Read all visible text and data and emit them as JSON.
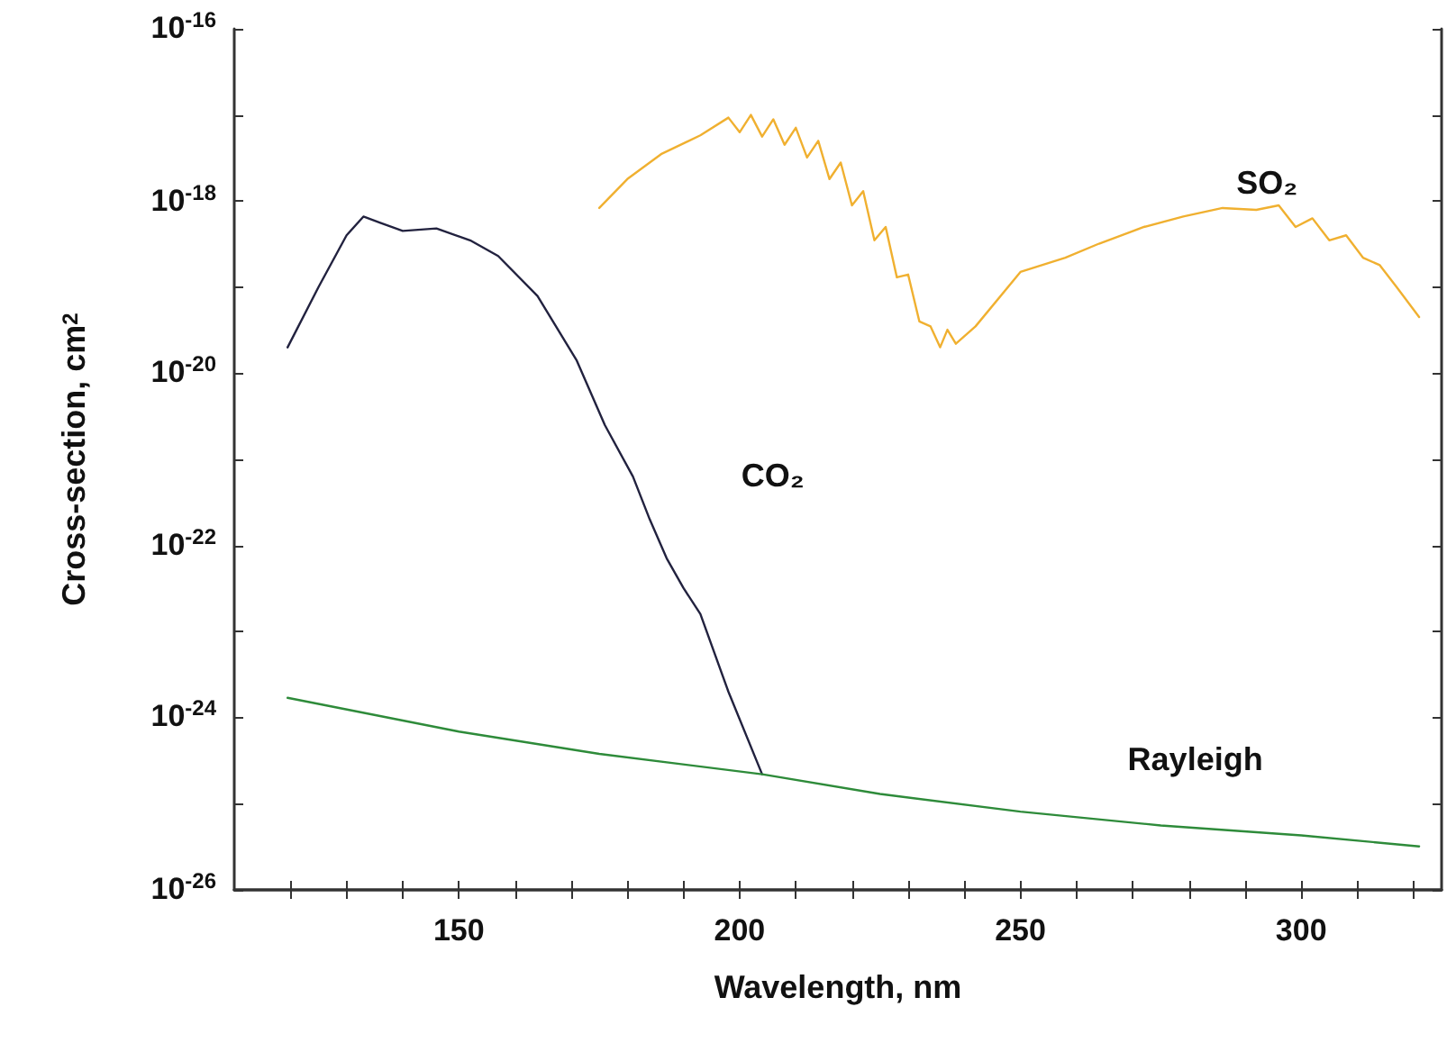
{
  "chart_data": {
    "type": "line",
    "xlabel": "Wavelength, nm",
    "ylabel": "Cross-section, cm$^{2}$",
    "log": "y",
    "xlim": [
      110,
      325
    ],
    "xticks": [
      {
        "value": 120,
        "label": null
      },
      {
        "value": 130,
        "label": null
      },
      {
        "value": 140,
        "label": null
      },
      150,
      {
        "value": 160,
        "label": null
      },
      {
        "value": 170,
        "label": null
      },
      {
        "value": 180,
        "label": null
      },
      {
        "value": 190,
        "label": null
      },
      200,
      {
        "value": 210,
        "label": null
      },
      {
        "value": 220,
        "label": null
      },
      {
        "value": 230,
        "label": null
      },
      {
        "value": 240,
        "label": null
      },
      250,
      {
        "value": 260,
        "label": null
      },
      {
        "value": 270,
        "label": null
      },
      {
        "value": 280,
        "label": null
      },
      {
        "value": 290,
        "label": null
      },
      300,
      {
        "value": 310,
        "label": null
      },
      {
        "value": 320,
        "label": null
      }
    ],
    "ylim": [
      1e-26,
      1e-16
    ],
    "yticks": [
      {
        "value": 1e-26,
        "label": "10$^{-26}$"
      },
      {
        "value": 1e-25,
        "label": null
      },
      {
        "value": 1e-24,
        "label": "10$^{-24}$"
      },
      {
        "value": 1e-23,
        "label": null
      },
      {
        "value": 1e-22,
        "label": "10$^{-22}$"
      },
      {
        "value": 1e-21,
        "label": null
      },
      {
        "value": 1e-20,
        "label": "10$^{-20}$"
      },
      {
        "value": 1e-19,
        "label": null
      },
      {
        "value": 1e-18,
        "label": "10$^{-18}$"
      },
      {
        "value": 1e-17,
        "label": null
      },
      {
        "value": 1e-16,
        "label": "10$^{-16}$"
      }
    ],
    "marker": "none",
    "line_style": "solid",
    "grid": false,
    "legend": false,
    "series": [
      {
        "name": "CO₂",
        "color": "#22223f",
        "x": [
          119.5,
          125,
          130,
          133,
          136,
          140,
          146,
          152,
          157,
          164,
          171,
          176,
          181,
          184,
          187,
          190,
          193,
          198,
          204
        ],
        "values": [
          2e-20,
          1e-19,
          4e-19,
          6.6e-19,
          5.6e-19,
          4.5e-19,
          4.8e-19,
          3.5e-19,
          2.3e-19,
          7.9e-20,
          1.4e-20,
          2.5e-21,
          6.3e-22,
          2e-22,
          7.1e-23,
          3.2e-23,
          1.6e-23,
          2e-24,
          2.2e-25
        ]
      },
      {
        "name": "SO₂",
        "color": "#f0b030",
        "x": [
          175,
          180,
          186,
          193,
          198,
          200,
          202,
          204,
          206,
          208,
          210,
          212,
          214,
          216,
          218,
          220,
          222,
          224,
          226,
          228,
          230,
          232,
          234,
          235.7,
          237,
          238.5,
          242,
          250,
          258,
          264,
          272,
          279,
          286,
          292,
          296,
          299,
          302,
          305,
          308,
          311,
          314,
          317,
          321
        ],
        "values": [
          8.3e-19,
          1.8e-18,
          3.5e-18,
          5.8e-18,
          9.3e-18,
          6.3e-18,
          1e-17,
          5.6e-18,
          8.9e-18,
          4.5e-18,
          7.1e-18,
          3.2e-18,
          5e-18,
          1.8e-18,
          2.8e-18,
          8.9e-19,
          1.3e-18,
          3.5e-19,
          5e-19,
          1.3e-19,
          1.4e-19,
          4e-20,
          3.5e-20,
          2e-20,
          3.2e-20,
          2.2e-20,
          3.5e-20,
          1.5e-19,
          2.2e-19,
          3.2e-19,
          5e-19,
          6.6e-19,
          8.3e-19,
          7.9e-19,
          8.9e-19,
          5e-19,
          6.3e-19,
          3.5e-19,
          4e-19,
          2.2e-19,
          1.8e-19,
          1e-19,
          4.5e-20
        ]
      },
      {
        "name": "Rayleigh",
        "color": "#2e8b3a",
        "x": [
          119.5,
          150,
          175,
          204,
          225,
          250,
          275,
          300,
          321
        ],
        "values": [
          1.7e-24,
          6.9e-25,
          3.8e-25,
          2.2e-25,
          1.3e-25,
          8.1e-26,
          5.6e-26,
          4.3e-26,
          3.2e-26
        ]
      }
    ]
  }
}
